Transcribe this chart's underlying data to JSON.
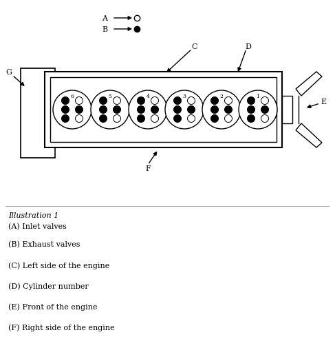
{
  "bg_color": "#ffffff",
  "illustration_label": "Illustration 1",
  "legend_labels": [
    "(A) Inlet valves",
    "(B) Exhaust valves",
    "(C) Left side of the engine",
    "(D) Cylinder number",
    "(E) Front of the engine",
    "(F) Right side of the engine"
  ],
  "cylinder_numbers": [
    "6",
    "5",
    "4",
    "3",
    "2",
    "1"
  ]
}
